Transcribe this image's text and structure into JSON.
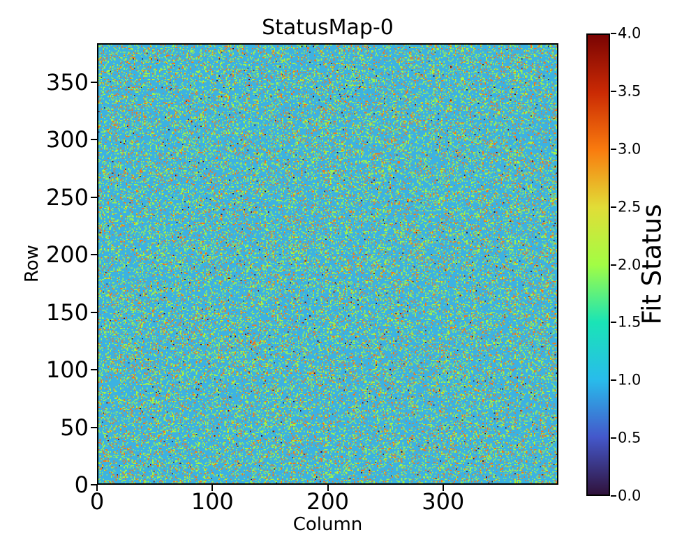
{
  "chart_data": {
    "type": "heatmap",
    "title": "StatusMap-0",
    "xlabel": "Column",
    "ylabel": "Row",
    "x_ticks": [
      "0",
      "100",
      "200",
      "300"
    ],
    "y_ticks": [
      "0",
      "50",
      "100",
      "150",
      "200",
      "250",
      "300",
      "350"
    ],
    "x_range": [
      0,
      400
    ],
    "y_range": [
      0,
      384
    ],
    "grid_cols": 400,
    "grid_rows": 384,
    "vmin": 0.0,
    "vmax": 4.0,
    "colormap": "turbo",
    "grid": "off",
    "colorbar": {
      "label": "Fit Status",
      "ticks": [
        "0.0",
        "0.5",
        "1.0",
        "1.5",
        "2.0",
        "2.5",
        "3.0",
        "3.5",
        "4.0"
      ],
      "position": "right",
      "gradient_stops": [
        "#30123b",
        "#4458cb",
        "#28bceb",
        "#1ae4b6",
        "#a2fd44",
        "#e1dd37",
        "#f97b0e",
        "#ca2a04",
        "#7a0403"
      ]
    },
    "cells": {
      "description": "independent random per-pixel status codes, dominated by status 1",
      "values": [
        0,
        1,
        2,
        3,
        4
      ],
      "colors": [
        "#30123b",
        "#3cb2e2",
        "#a2f444",
        "#f4771b",
        "#7a0403"
      ],
      "probabilities": [
        0.003,
        0.745,
        0.165,
        0.085,
        0.002
      ],
      "random_seed": 42
    }
  }
}
